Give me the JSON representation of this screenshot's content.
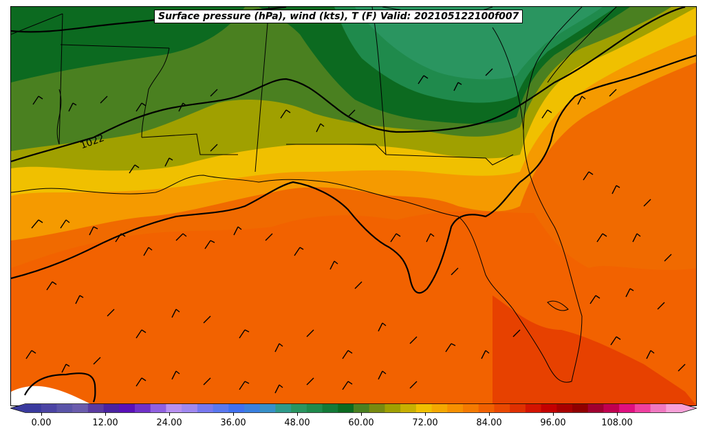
{
  "title": "Surface pressure (hPa), wind (kts), T (F) Valid: 202105122100f007",
  "isobar_label": "1022",
  "colorbar": {
    "ticks": [
      "0.00",
      "12.00",
      "24.00",
      "36.00",
      "48.00",
      "60.00",
      "72.00",
      "84.00",
      "96.00",
      "108.00"
    ],
    "colors": [
      "#3a3a9e",
      "#4b44a4",
      "#5a54a8",
      "#6a5cad",
      "#5a3aa0",
      "#4a22a0",
      "#5a10b8",
      "#7030c8",
      "#9060e0",
      "#b890f0",
      "#a088f0",
      "#7878f0",
      "#5a78f0",
      "#4070f0",
      "#3a80e0",
      "#3890c8",
      "#2f9a8a",
      "#2a9560",
      "#1f8a4c",
      "#137a38",
      "#0c6a20",
      "#4a8020",
      "#788a10",
      "#a0a000",
      "#c8b000",
      "#f0c000",
      "#f5a800",
      "#f79000",
      "#f57a00",
      "#f06000",
      "#ea4800",
      "#e03000",
      "#d41400",
      "#c40000",
      "#a80000",
      "#900000",
      "#a00030",
      "#c00050",
      "#e01080",
      "#f040a0",
      "#f078c0",
      "#f8a0d8"
    ]
  }
}
